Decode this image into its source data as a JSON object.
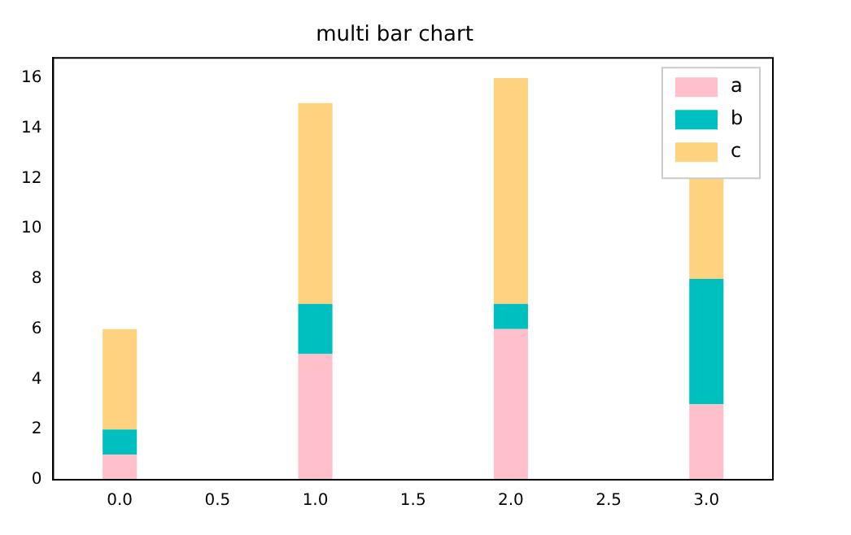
{
  "chart_data": {
    "type": "bar",
    "title": "multi bar chart",
    "stacked": true,
    "x": [
      0,
      1,
      2,
      3
    ],
    "series": [
      {
        "name": "a",
        "color": "#ffc0cb",
        "values": [
          1,
          5,
          6,
          3
        ]
      },
      {
        "name": "b",
        "color": "#00bfbf",
        "values": [
          1,
          2,
          1,
          5
        ]
      },
      {
        "name": "c",
        "color": "#ffd27f",
        "values": [
          4,
          8,
          9,
          4
        ]
      }
    ],
    "xlim": [
      -0.34,
      3.34
    ],
    "xticks": [
      {
        "value": 0,
        "label": "0.0"
      },
      {
        "value": 0.5,
        "label": "0.5"
      },
      {
        "value": 1,
        "label": "1.0"
      },
      {
        "value": 1.5,
        "label": "1.5"
      },
      {
        "value": 2,
        "label": "2.0"
      },
      {
        "value": 2.5,
        "label": "2.5"
      },
      {
        "value": 3,
        "label": "3.0"
      }
    ],
    "ylim": [
      0,
      16.8
    ],
    "yticks": [
      0,
      2,
      4,
      6,
      8,
      10,
      12,
      14,
      16
    ],
    "grid": false,
    "legend": "top right"
  }
}
